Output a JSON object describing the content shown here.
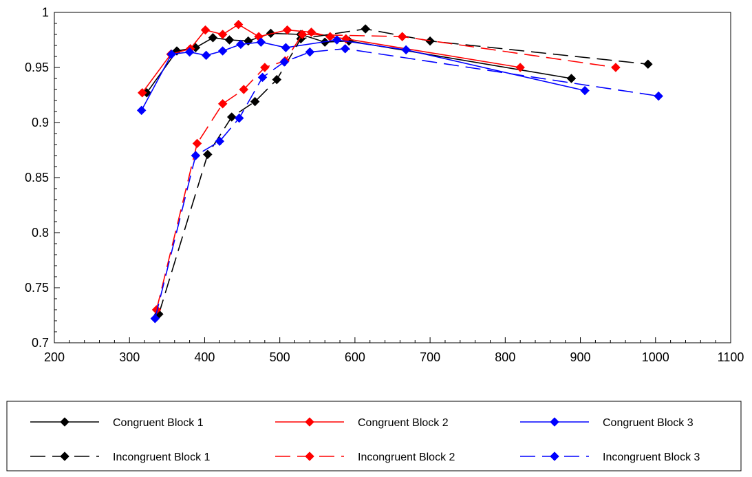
{
  "chart_data": {
    "type": "line",
    "title": "",
    "xlabel": "",
    "ylabel": "",
    "xlim": [
      200,
      1100
    ],
    "ylim": [
      0.7,
      1.0
    ],
    "x_ticks": [
      "200",
      "300",
      "400",
      "500",
      "600",
      "700",
      "800",
      "900",
      "1000",
      "1100"
    ],
    "y_ticks": [
      "0.7",
      "0.75",
      "0.8",
      "0.85",
      "0.9",
      "0.95",
      "1"
    ],
    "grid": false,
    "legend_position": "bottom",
    "series": [
      {
        "name": "Congruent Block 1",
        "color": "#000000",
        "dash": "solid",
        "points": [
          [
            323,
            0.927
          ],
          [
            363,
            0.965
          ],
          [
            388,
            0.968
          ],
          [
            411,
            0.977
          ],
          [
            433,
            0.975
          ],
          [
            458,
            0.974
          ],
          [
            488,
            0.981
          ],
          [
            528,
            0.98
          ],
          [
            560,
            0.973
          ],
          [
            592,
            0.974
          ],
          [
            888,
            0.94
          ]
        ]
      },
      {
        "name": "Congruent Block 2",
        "color": "#ff0000",
        "dash": "solid",
        "points": [
          [
            317,
            0.927
          ],
          [
            355,
            0.962
          ],
          [
            381,
            0.967
          ],
          [
            401,
            0.984
          ],
          [
            424,
            0.98
          ],
          [
            445,
            0.989
          ],
          [
            472,
            0.978
          ],
          [
            510,
            0.984
          ],
          [
            542,
            0.982
          ],
          [
            567,
            0.978
          ],
          [
            588,
            0.976
          ],
          [
            820,
            0.95
          ]
        ]
      },
      {
        "name": "Congruent Block 3",
        "color": "#0000ff",
        "dash": "solid",
        "points": [
          [
            316,
            0.911
          ],
          [
            356,
            0.962
          ],
          [
            380,
            0.964
          ],
          [
            402,
            0.961
          ],
          [
            424,
            0.965
          ],
          [
            448,
            0.971
          ],
          [
            475,
            0.973
          ],
          [
            508,
            0.968
          ],
          [
            576,
            0.975
          ],
          [
            668,
            0.966
          ],
          [
            906,
            0.929
          ]
        ]
      },
      {
        "name": "Incongruent Block 1",
        "color": "#000000",
        "dash": "dashed",
        "points": [
          [
            339,
            0.726
          ],
          [
            404,
            0.871
          ],
          [
            436,
            0.905
          ],
          [
            467,
            0.919
          ],
          [
            496,
            0.939
          ],
          [
            528,
            0.976
          ],
          [
            614,
            0.985
          ],
          [
            700,
            0.974
          ],
          [
            990,
            0.953
          ]
        ]
      },
      {
        "name": "Incongruent Block 2",
        "color": "#ff0000",
        "dash": "dashed",
        "points": [
          [
            336,
            0.73
          ],
          [
            390,
            0.881
          ],
          [
            424,
            0.917
          ],
          [
            452,
            0.93
          ],
          [
            480,
            0.95
          ],
          [
            507,
            0.956
          ],
          [
            530,
            0.98
          ],
          [
            663,
            0.978
          ],
          [
            947,
            0.95
          ]
        ]
      },
      {
        "name": "Incongruent Block 3",
        "color": "#0000ff",
        "dash": "dashed",
        "points": [
          [
            334,
            0.722
          ],
          [
            388,
            0.87
          ],
          [
            420,
            0.883
          ],
          [
            446,
            0.904
          ],
          [
            477,
            0.941
          ],
          [
            506,
            0.955
          ],
          [
            540,
            0.964
          ],
          [
            587,
            0.967
          ],
          [
            1004,
            0.924
          ]
        ]
      }
    ]
  }
}
